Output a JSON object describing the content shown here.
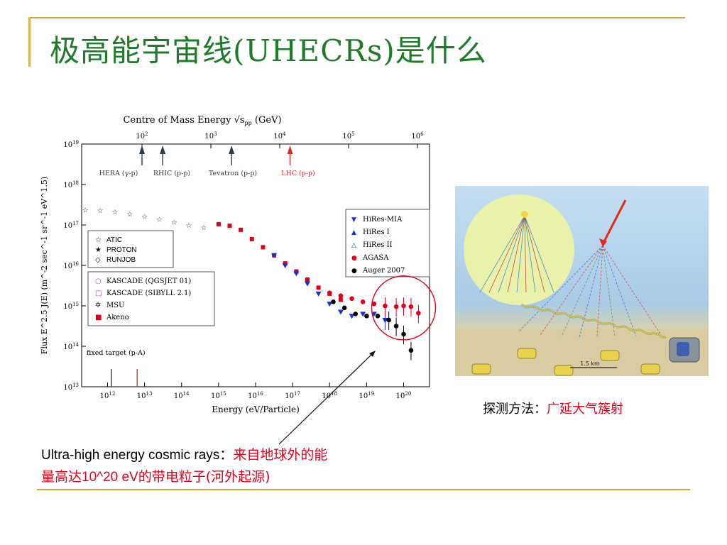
{
  "slide": {
    "title": "极高能宇宙线(UHECRs)是什么",
    "detection_caption_label": "探测方法：",
    "detection_caption_value": "广延大气簇射",
    "bottom_caption_en": "Ultra-high energy cosmic rays：",
    "bottom_caption_cn_red_1": "来自地球外的能",
    "bottom_caption_cn_red_2": "量高达",
    "bottom_caption_energy": "10^20 eV",
    "bottom_caption_cn_red_3": "的带电粒子(河外起源)"
  },
  "colors": {
    "title_green": "#1f7a2a",
    "accent_gold": "#d8a437",
    "red": "#e0001b",
    "sky": "#b9d6ec",
    "ground": "#d9cfa5"
  },
  "chart_data": {
    "type": "scatter",
    "top_axis_title": "Centre of Mass Energy √s",
    "top_axis_sub": "pp",
    "top_axis_unit": "(GeV)",
    "top_ticks": [
      "10^2",
      "10^3",
      "10^4",
      "10^5",
      "10^6"
    ],
    "xlabel": "Energy (eV/Particle)",
    "ylabel": "Flux  E^2.5 J(E)  (m^-2 sec^-1 sr^-1 eV^1.5)",
    "x_ticks": [
      "10^12",
      "10^13",
      "10^14",
      "10^15",
      "10^16",
      "10^17",
      "10^18",
      "10^19",
      "10^20"
    ],
    "y_ticks": [
      "10^13",
      "10^14",
      "10^15",
      "10^16",
      "10^17",
      "10^18",
      "10^19"
    ],
    "x_scale": "log",
    "y_scale": "log",
    "xlim_log10": [
      11.3,
      20.7
    ],
    "ylim_log10": [
      13,
      19
    ],
    "accelerators": [
      {
        "label": "HERA (γ-p)",
        "sqrt_s_log10": 2.0,
        "color": "#303a44"
      },
      {
        "label": "RHIC (p-p)",
        "sqrt_s_log10": 2.3,
        "color": "#303a44"
      },
      {
        "label": "Tevatron (p-p)",
        "sqrt_s_log10": 3.3,
        "color": "#303a44"
      },
      {
        "label": "LHC (p-p)",
        "sqrt_s_log10": 4.15,
        "color": "#d0312d"
      }
    ],
    "fixed_target": {
      "label": "fixed target (p-A)",
      "arrows": [
        {
          "energy_log10": 12.1,
          "color": "#303a44"
        },
        {
          "energy_log10": 12.8,
          "color": "#d0312d"
        }
      ]
    },
    "legend_left": [
      {
        "name": "ATIC",
        "symbol": "☆"
      },
      {
        "name": "PROTON",
        "symbol": "★"
      },
      {
        "name": "RUNJOB",
        "symbol": "◇"
      }
    ],
    "legend_left2": [
      {
        "name": "KASCADE (QGSJET 01)",
        "symbol": "○",
        "color": "#cc33cc"
      },
      {
        "name": "KASCADE (SIBYLL 2.1)",
        "symbol": "□",
        "color": "#cc33cc"
      },
      {
        "name": "MSU",
        "symbol": "✡",
        "color": "#000000"
      },
      {
        "name": "Akeno",
        "symbol": "■",
        "color": "#e0001b"
      }
    ],
    "legend_right": [
      {
        "name": "HiRes-MIA",
        "symbol": "▼",
        "color": "#1a2fd6"
      },
      {
        "name": "HiRes I",
        "symbol": "▲",
        "color": "#1a2fd6"
      },
      {
        "name": "HiRes II",
        "symbol": "△",
        "color": "#1a2fd6"
      },
      {
        "name": "AGASA",
        "symbol": "●",
        "color": "#e0001b"
      },
      {
        "name": "Auger 2007",
        "symbol": "●",
        "color": "#000000"
      }
    ],
    "series": [
      {
        "name": "ATIC / PROTON / RUNJOB",
        "color": "#222222",
        "x": [
          11.4,
          11.8,
          12.2,
          12.6,
          13.0,
          13.4,
          13.8,
          14.2,
          14.6
        ],
        "y": [
          17.38,
          17.37,
          17.33,
          17.28,
          17.22,
          17.15,
          17.08,
          17.0,
          16.95
        ]
      },
      {
        "name": "KASCADE / Akeno",
        "color": "#e0001b",
        "x": [
          15.0,
          15.3,
          15.6,
          15.9,
          16.2,
          16.5,
          16.8,
          17.1,
          17.4,
          17.7,
          18.0,
          18.3
        ],
        "y": [
          17.02,
          16.98,
          16.88,
          16.65,
          16.45,
          16.25,
          16.05,
          15.85,
          15.65,
          15.45,
          15.3,
          15.15
        ]
      },
      {
        "name": "HiRes",
        "color": "#1a2fd6",
        "x": [
          16.5,
          16.8,
          17.1,
          17.4,
          17.7,
          18.0,
          18.3,
          18.6,
          18.9,
          19.2,
          19.5
        ],
        "y": [
          16.25,
          16.0,
          15.8,
          15.55,
          15.3,
          15.05,
          14.85,
          14.75,
          14.8,
          14.8,
          14.65
        ]
      },
      {
        "name": "AGASA",
        "color": "#e0001b",
        "x": [
          18.0,
          18.3,
          18.6,
          18.9,
          19.2,
          19.5,
          19.8,
          20.0,
          20.2,
          20.4
        ],
        "y": [
          15.32,
          15.25,
          15.18,
          15.1,
          15.05,
          15.0,
          14.98,
          15.0,
          14.98,
          14.82
        ]
      },
      {
        "name": "Auger 2007",
        "color": "#000000",
        "x": [
          18.1,
          18.4,
          18.7,
          19.0,
          19.3,
          19.6,
          19.8,
          20.0,
          20.2
        ],
        "y": [
          15.1,
          14.95,
          14.8,
          14.75,
          14.75,
          14.65,
          14.5,
          14.3,
          13.9
        ]
      }
    ]
  },
  "detector_diagram": {
    "scale_label": "1.5 km"
  }
}
